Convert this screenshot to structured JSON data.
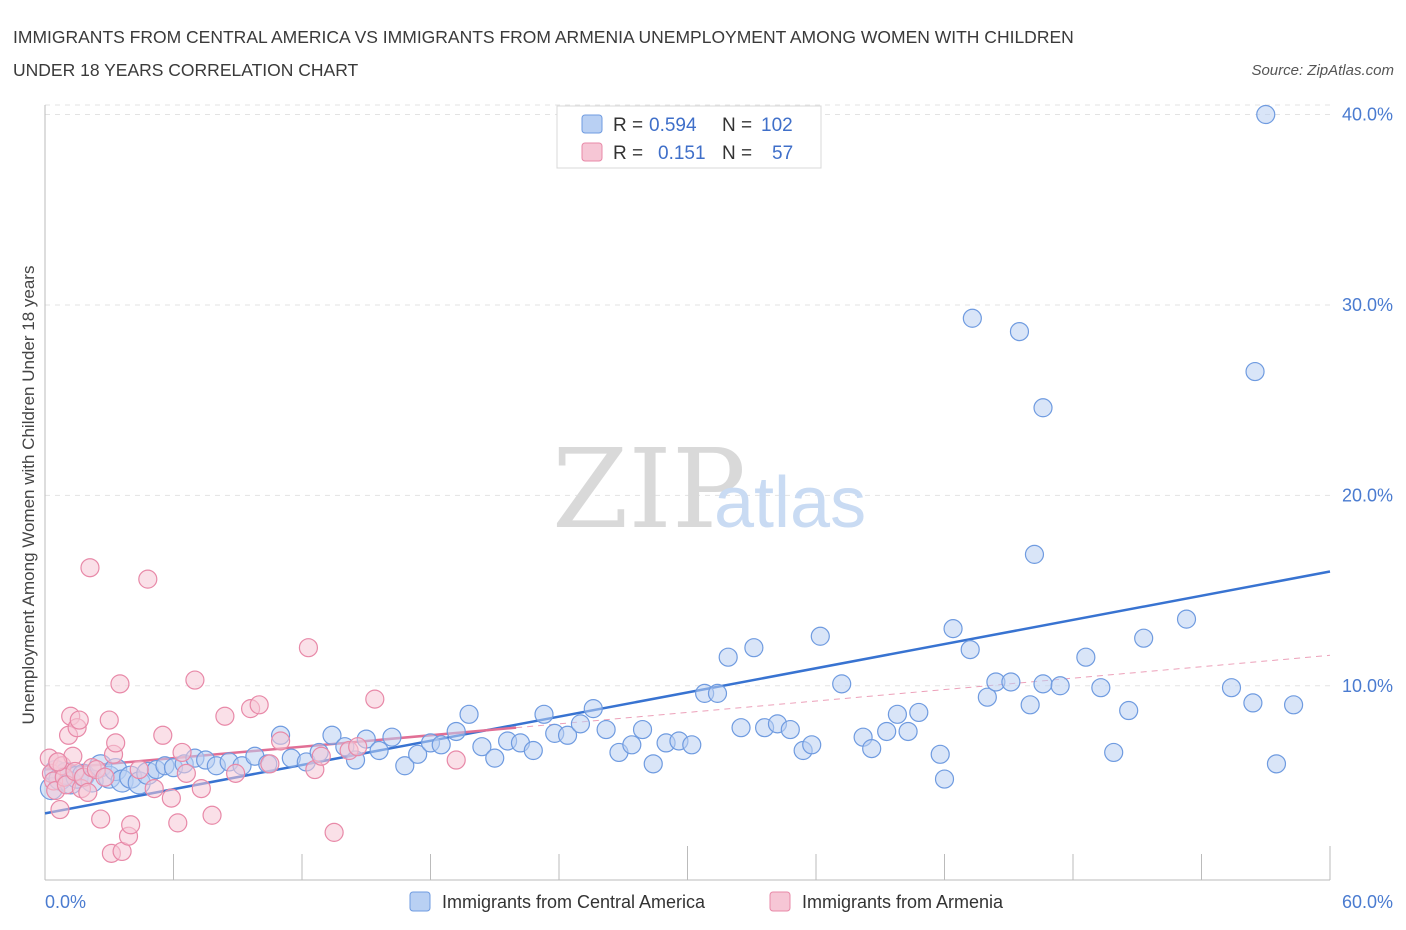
{
  "title_line1": "IMMIGRANTS FROM CENTRAL AMERICA VS IMMIGRANTS FROM ARMENIA UNEMPLOYMENT AMONG WOMEN WITH CHILDREN",
  "title_line2": "UNDER 18 YEARS CORRELATION CHART",
  "source": "Source: ZipAtlas.com",
  "watermark": {
    "zip": "ZIP",
    "atlas": "atlas"
  },
  "colors": {
    "blue": "#6f9be0",
    "blue_fill": "#b9d0f3",
    "blue_line": "#3873d1",
    "pink": "#e889a8",
    "pink_fill": "#f6c6d5",
    "pink_line": "#e16f95"
  },
  "legend": {
    "row1": {
      "r_label": "R =",
      "r_value": "0.594",
      "n_label": "N =",
      "n_value": "102"
    },
    "row2": {
      "r_label": "R =",
      "r_value": "0.151",
      "n_label": "N =",
      "n_value": "57"
    }
  },
  "chart_data": {
    "type": "scatter",
    "ylabel": "Unemployment Among Women with Children Under 18 years",
    "xlim": [
      0,
      60
    ],
    "ylim": [
      -0.2,
      40.5
    ],
    "x_tick_labels": [
      "0.0%",
      "60.0%"
    ],
    "y_ticks": [
      10,
      20,
      30,
      40
    ],
    "y_tick_labels": [
      "10.0%",
      "20.0%",
      "30.0%",
      "40.0%"
    ],
    "grid": true,
    "series": [
      {
        "name": "Immigrants from Central America",
        "color": "#6f9be0",
        "trend": {
          "x": [
            0,
            60
          ],
          "y": [
            3.3,
            16.0
          ]
        },
        "points": [
          [
            0.3,
            4.6
          ],
          [
            0.5,
            5.5
          ],
          [
            0.7,
            5.1
          ],
          [
            1.0,
            5.4
          ],
          [
            1.2,
            4.9
          ],
          [
            1.5,
            5.2
          ],
          [
            1.8,
            5.3
          ],
          [
            2.2,
            5.0
          ],
          [
            2.6,
            5.8
          ],
          [
            3.0,
            5.2
          ],
          [
            3.3,
            5.6
          ],
          [
            3.6,
            5.0
          ],
          [
            4.0,
            5.2
          ],
          [
            4.4,
            4.9
          ],
          [
            4.8,
            5.4
          ],
          [
            5.2,
            5.6
          ],
          [
            5.6,
            5.8
          ],
          [
            6.0,
            5.7
          ],
          [
            6.5,
            5.9
          ],
          [
            7.0,
            6.2
          ],
          [
            7.5,
            6.1
          ],
          [
            8.0,
            5.8
          ],
          [
            8.6,
            6.0
          ],
          [
            9.2,
            5.8
          ],
          [
            9.8,
            6.3
          ],
          [
            10.4,
            5.9
          ],
          [
            11.0,
            7.4
          ],
          [
            11.5,
            6.2
          ],
          [
            12.2,
            6.0
          ],
          [
            12.8,
            6.5
          ],
          [
            13.4,
            7.4
          ],
          [
            14.0,
            6.8
          ],
          [
            14.5,
            6.1
          ],
          [
            15.0,
            7.2
          ],
          [
            15.6,
            6.6
          ],
          [
            16.2,
            7.3
          ],
          [
            16.8,
            5.8
          ],
          [
            17.4,
            6.4
          ],
          [
            18.0,
            7.0
          ],
          [
            18.5,
            6.9
          ],
          [
            19.2,
            7.6
          ],
          [
            19.8,
            8.5
          ],
          [
            20.4,
            6.8
          ],
          [
            21.0,
            6.2
          ],
          [
            21.6,
            7.1
          ],
          [
            22.2,
            7.0
          ],
          [
            22.8,
            6.6
          ],
          [
            23.3,
            8.5
          ],
          [
            23.8,
            7.5
          ],
          [
            24.4,
            7.4
          ],
          [
            25.0,
            8.0
          ],
          [
            25.6,
            8.8
          ],
          [
            26.2,
            7.7
          ],
          [
            26.8,
            6.5
          ],
          [
            27.4,
            6.9
          ],
          [
            27.9,
            7.7
          ],
          [
            28.4,
            5.9
          ],
          [
            29.0,
            7.0
          ],
          [
            29.6,
            7.1
          ],
          [
            30.2,
            6.9
          ],
          [
            30.8,
            9.6
          ],
          [
            31.4,
            9.6
          ],
          [
            31.9,
            11.5
          ],
          [
            32.5,
            7.8
          ],
          [
            33.1,
            12.0
          ],
          [
            33.6,
            7.8
          ],
          [
            34.2,
            8.0
          ],
          [
            34.8,
            7.7
          ],
          [
            35.4,
            6.6
          ],
          [
            35.8,
            6.9
          ],
          [
            36.2,
            12.6
          ],
          [
            37.2,
            10.1
          ],
          [
            38.2,
            7.3
          ],
          [
            38.6,
            6.7
          ],
          [
            39.3,
            7.6
          ],
          [
            39.8,
            8.5
          ],
          [
            40.3,
            7.6
          ],
          [
            40.8,
            8.6
          ],
          [
            41.8,
            6.4
          ],
          [
            42.4,
            13.0
          ],
          [
            43.2,
            11.9
          ],
          [
            44.0,
            9.4
          ],
          [
            44.4,
            10.2
          ],
          [
            45.1,
            10.2
          ],
          [
            46.0,
            9.0
          ],
          [
            46.6,
            10.1
          ],
          [
            47.4,
            10.0
          ],
          [
            48.6,
            11.5
          ],
          [
            49.3,
            9.9
          ],
          [
            49.9,
            6.5
          ],
          [
            50.6,
            8.7
          ],
          [
            51.3,
            12.5
          ],
          [
            53.3,
            13.5
          ],
          [
            55.4,
            9.9
          ],
          [
            56.4,
            9.1
          ],
          [
            57.5,
            5.9
          ],
          [
            58.3,
            9.0
          ],
          [
            43.3,
            29.3
          ],
          [
            45.5,
            28.6
          ],
          [
            46.6,
            24.6
          ],
          [
            46.2,
            16.9
          ],
          [
            57.0,
            40.0
          ],
          [
            56.5,
            26.5
          ],
          [
            42.0,
            5.1
          ]
        ]
      },
      {
        "name": "Immigrants from Armenia",
        "color": "#e889a8",
        "trend": {
          "x": [
            0,
            22
          ],
          "y": [
            5.6,
            7.8
          ]
        },
        "points": [
          [
            0.2,
            6.2
          ],
          [
            0.3,
            5.4
          ],
          [
            0.4,
            5.0
          ],
          [
            0.5,
            4.5
          ],
          [
            0.6,
            6.0
          ],
          [
            0.7,
            3.5
          ],
          [
            0.8,
            5.8
          ],
          [
            0.9,
            5.2
          ],
          [
            1.0,
            4.8
          ],
          [
            1.1,
            7.4
          ],
          [
            1.2,
            8.4
          ],
          [
            1.3,
            6.3
          ],
          [
            1.4,
            5.5
          ],
          [
            1.5,
            7.8
          ],
          [
            1.6,
            8.2
          ],
          [
            1.7,
            4.6
          ],
          [
            1.8,
            5.2
          ],
          [
            2.0,
            4.4
          ],
          [
            2.1,
            16.2
          ],
          [
            2.2,
            5.7
          ],
          [
            2.4,
            5.6
          ],
          [
            2.6,
            3.0
          ],
          [
            2.8,
            5.2
          ],
          [
            3.0,
            8.2
          ],
          [
            3.1,
            1.2
          ],
          [
            3.2,
            6.4
          ],
          [
            3.3,
            7.0
          ],
          [
            3.6,
            1.3
          ],
          [
            3.9,
            2.1
          ],
          [
            4.0,
            2.7
          ],
          [
            3.5,
            10.1
          ],
          [
            4.4,
            5.6
          ],
          [
            4.8,
            15.6
          ],
          [
            5.1,
            4.6
          ],
          [
            5.5,
            7.4
          ],
          [
            5.9,
            4.1
          ],
          [
            6.2,
            2.8
          ],
          [
            6.4,
            6.5
          ],
          [
            6.6,
            5.4
          ],
          [
            7.0,
            10.3
          ],
          [
            7.3,
            4.6
          ],
          [
            7.8,
            3.2
          ],
          [
            8.4,
            8.4
          ],
          [
            8.9,
            5.4
          ],
          [
            9.6,
            8.8
          ],
          [
            10.0,
            9.0
          ],
          [
            10.5,
            5.9
          ],
          [
            11.0,
            7.1
          ],
          [
            12.3,
            12.0
          ],
          [
            12.6,
            5.6
          ],
          [
            12.9,
            6.3
          ],
          [
            13.5,
            2.3
          ],
          [
            14.2,
            6.6
          ],
          [
            14.6,
            6.8
          ],
          [
            15.4,
            9.3
          ],
          [
            19.2,
            6.1
          ],
          [
            0.6,
            6.0
          ]
        ]
      }
    ]
  },
  "bottom_legend": {
    "item1": "Immigrants from Central America",
    "item2": "Immigrants from Armenia"
  }
}
